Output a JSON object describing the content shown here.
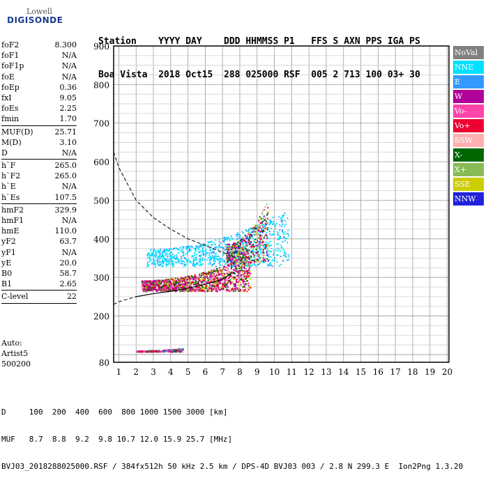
{
  "logo": {
    "lowell": "Lowell",
    "digisonde": "DIGISONDE"
  },
  "header": {
    "line1": "Station    YYYY DAY    DDD HHMMSS P1   FFS S AXN PPS IGA PS",
    "line2": "Boa Vista  2018 Oct15  288 025000 RSF  005 2 713 100 03+ 30"
  },
  "params": [
    {
      "label": "foF2",
      "value": "8.300"
    },
    {
      "label": "foF1",
      "value": "N/A"
    },
    {
      "label": "foF1p",
      "value": "N/A"
    },
    {
      "label": "foE",
      "value": "N/A"
    },
    {
      "label": "foEp",
      "value": "0.36"
    },
    {
      "label": "fxI",
      "value": "9.05"
    },
    {
      "label": "foEs",
      "value": "2.25"
    },
    {
      "label": "fmin",
      "value": "1.70"
    },
    {
      "sep": true
    },
    {
      "label": "MUF(D)",
      "value": "25.71"
    },
    {
      "label": "M(D)",
      "value": "3.10"
    },
    {
      "label": "D",
      "value": "N/A"
    },
    {
      "sep": true
    },
    {
      "label": "h`F",
      "value": "265.0"
    },
    {
      "label": "h`F2",
      "value": "265.0"
    },
    {
      "label": "h`E",
      "value": "N/A"
    },
    {
      "label": "h`Es",
      "value": "107.5"
    },
    {
      "sep": true
    },
    {
      "label": "hmF2",
      "value": "329.9"
    },
    {
      "label": "hmF1",
      "value": "N/A"
    },
    {
      "label": "hmE",
      "value": "110.0"
    },
    {
      "label": "yF2",
      "value": "63.7"
    },
    {
      "label": "yF1",
      "value": "N/A"
    },
    {
      "label": "yE",
      "value": "20.0"
    },
    {
      "label": "B0",
      "value": "58.7"
    },
    {
      "label": "B1",
      "value": "2.65"
    },
    {
      "sep": true
    },
    {
      "label": "C-level",
      "value": "22"
    },
    {
      "sep": true
    }
  ],
  "auto": {
    "line1": "Auto:",
    "line2": "Artist5",
    "line3": "500200"
  },
  "footer": {
    "d_row": "D     100  200  400  600  800 1000 1500 3000 [km]",
    "muf_row": "MUF   8.7  8.8  9.2  9.8 10.7 12.0 15.9 25.7 [MHz]",
    "info": "BVJ03_2018288025000.RSF / 384fx512h 50 kHz 2.5 km / DPS-4D BVJ03 003 / 2.8 N 299.3 E  Ion2Png 1.3.20"
  },
  "legend": [
    {
      "label": "NoVal",
      "color": "#808080",
      "text_color": "#ffffff"
    },
    {
      "label": "NNE",
      "color": "#00e0ff",
      "text_color": "#ffffff"
    },
    {
      "label": "E",
      "color": "#3399ff",
      "text_color": "#ffffff"
    },
    {
      "label": "W",
      "color": "#b0009a",
      "text_color": "#ffffff"
    },
    {
      "label": "Vo-",
      "color": "#ff44aa",
      "text_color": "#ffffff"
    },
    {
      "label": "Vo+",
      "color": "#ee0033",
      "text_color": "#ffffff"
    },
    {
      "label": "SSW",
      "color": "#ffb0b0",
      "text_color": "#ffffff"
    },
    {
      "label": "X-",
      "color": "#006600",
      "text_color": "#ffffff"
    },
    {
      "label": "X+",
      "color": "#88bb55",
      "text_color": "#ffffff"
    },
    {
      "label": "SSE",
      "color": "#cccc00",
      "text_color": "#ffffff"
    },
    {
      "label": "NNW",
      "color": "#2222dd",
      "text_color": "#ffffff"
    }
  ],
  "chart_data": {
    "type": "scatter",
    "title": "",
    "xlabel": "",
    "ylabel": "",
    "xlim": [
      0.7,
      20.1
    ],
    "ylim": [
      80,
      900
    ],
    "x_ticks": [
      1,
      2,
      3,
      4,
      5,
      6,
      7,
      8,
      9,
      10,
      11,
      12,
      13,
      14,
      15,
      16,
      17,
      18,
      19,
      20
    ],
    "y_ticks": [
      100,
      200,
      300,
      400,
      500,
      600,
      700,
      800,
      900
    ],
    "y_tick_labels": [
      "",
      "200",
      "300",
      "400",
      "500",
      "600",
      "700",
      "800",
      "900"
    ],
    "y_min_label": "80",
    "grid": true,
    "legend_position": "right",
    "echo_clusters": [
      {
        "name": "Es layer",
        "color": "#ee0033",
        "x": [
          2.0,
          4.7
        ],
        "y": [
          108,
          118
        ]
      },
      {
        "name": "F layer main",
        "color": "#b0009a",
        "x": [
          2.3,
          8.6
        ],
        "y": [
          265,
          360
        ]
      },
      {
        "name": "F layer oblique",
        "color": "#00e0ff",
        "x": [
          2.6,
          10.8
        ],
        "y": [
          330,
          480
        ]
      },
      {
        "name": "F layer cusp",
        "color": "#ee0033",
        "x": [
          7.2,
          9.6
        ],
        "y": [
          340,
          500
        ]
      }
    ],
    "profile_dashed": {
      "x": [
        0.7,
        1.0,
        2.0,
        3.0,
        4.0,
        5.0,
        6.0,
        7.0,
        8.0,
        8.3
      ],
      "y": [
        625,
        585,
        500,
        455,
        425,
        400,
        383,
        365,
        345,
        335
      ]
    },
    "profile_dashed_lower": {
      "x": [
        0.7,
        1.0,
        2.0
      ],
      "y": [
        230,
        237,
        250
      ]
    },
    "trace_solid": {
      "x": [
        2.0,
        3.0,
        4.0,
        5.0,
        6.0,
        7.0,
        7.5
      ],
      "y": [
        250,
        258,
        264,
        272,
        282,
        295,
        310
      ]
    }
  }
}
